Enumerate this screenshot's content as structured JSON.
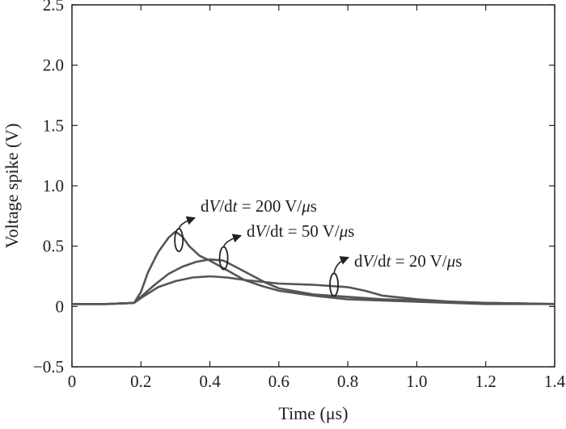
{
  "chart_data": {
    "type": "line",
    "title": "",
    "xlabel": "Time (μs)",
    "ylabel": "Voltage spike (V)",
    "xlim": [
      0,
      1.4
    ],
    "ylim": [
      -0.5,
      2.5
    ],
    "xticks": [
      0,
      0.2,
      0.4,
      0.6,
      0.8,
      1.0,
      1.2,
      1.4
    ],
    "xtick_labels": [
      "0",
      "0.2",
      "0.4",
      "0.6",
      "0.8",
      "1.0",
      "1.2",
      "1.4"
    ],
    "yticks": [
      -0.5,
      0,
      0.5,
      1.0,
      1.5,
      2.0,
      2.5
    ],
    "ytick_labels": [
      "−0.5",
      "0",
      "0.5",
      "1.0",
      "1.5",
      "2.0",
      "2.5"
    ],
    "grid": false,
    "legend": "none",
    "line_color": "#555555",
    "axis_color": "#222222",
    "series": [
      {
        "label_pre": "dV/dt = ",
        "label_value": "200 V/μs",
        "x": [
          0,
          0.1,
          0.18,
          0.2,
          0.22,
          0.25,
          0.28,
          0.3,
          0.32,
          0.34,
          0.37,
          0.4,
          0.45,
          0.5,
          0.55,
          0.6,
          0.7,
          0.8,
          0.9,
          1.0,
          1.2,
          1.4
        ],
        "y": [
          0.02,
          0.02,
          0.03,
          0.12,
          0.28,
          0.45,
          0.57,
          0.62,
          0.58,
          0.5,
          0.42,
          0.38,
          0.3,
          0.22,
          0.17,
          0.13,
          0.09,
          0.06,
          0.05,
          0.04,
          0.02,
          0.02
        ]
      },
      {
        "label_pre": "dV/dt = ",
        "label_value": "50 V/μs",
        "x": [
          0,
          0.1,
          0.18,
          0.2,
          0.24,
          0.28,
          0.32,
          0.36,
          0.4,
          0.44,
          0.48,
          0.52,
          0.56,
          0.6,
          0.7,
          0.8,
          0.9,
          1.0,
          1.2,
          1.4
        ],
        "y": [
          0.02,
          0.02,
          0.03,
          0.08,
          0.18,
          0.27,
          0.33,
          0.37,
          0.39,
          0.38,
          0.32,
          0.26,
          0.2,
          0.15,
          0.1,
          0.08,
          0.06,
          0.05,
          0.03,
          0.02
        ]
      },
      {
        "label_pre": "dV/dt = ",
        "label_value": "20 V/μs",
        "x": [
          0,
          0.1,
          0.18,
          0.2,
          0.25,
          0.3,
          0.35,
          0.4,
          0.45,
          0.5,
          0.6,
          0.7,
          0.8,
          0.85,
          0.9,
          1.0,
          1.1,
          1.2,
          1.4
        ],
        "y": [
          0.02,
          0.02,
          0.03,
          0.07,
          0.16,
          0.21,
          0.24,
          0.25,
          0.24,
          0.22,
          0.19,
          0.18,
          0.16,
          0.13,
          0.09,
          0.06,
          0.04,
          0.03,
          0.02
        ]
      }
    ],
    "annotations": [
      {
        "label_pre": "d",
        "label_var": "V",
        "label_mid": "/d",
        "label_t": "t",
        "label_post": " = 200 V/",
        "label_mu": "μ",
        "label_unit": "s",
        "x": 0.31,
        "y": 0.55
      },
      {
        "label_pre": "d",
        "label_var": "V",
        "label_mid": "/dt = ",
        "label_t": "",
        "label_post": "50 V/",
        "label_mu": "μ",
        "label_unit": "s",
        "x": 0.44,
        "y": 0.4
      },
      {
        "label_pre": "d",
        "label_var": "V",
        "label_mid": "/d",
        "label_t": "t",
        "label_post": " = 20 V/",
        "label_mu": "μ",
        "label_unit": "s",
        "x": 0.76,
        "y": 0.18
      }
    ]
  }
}
